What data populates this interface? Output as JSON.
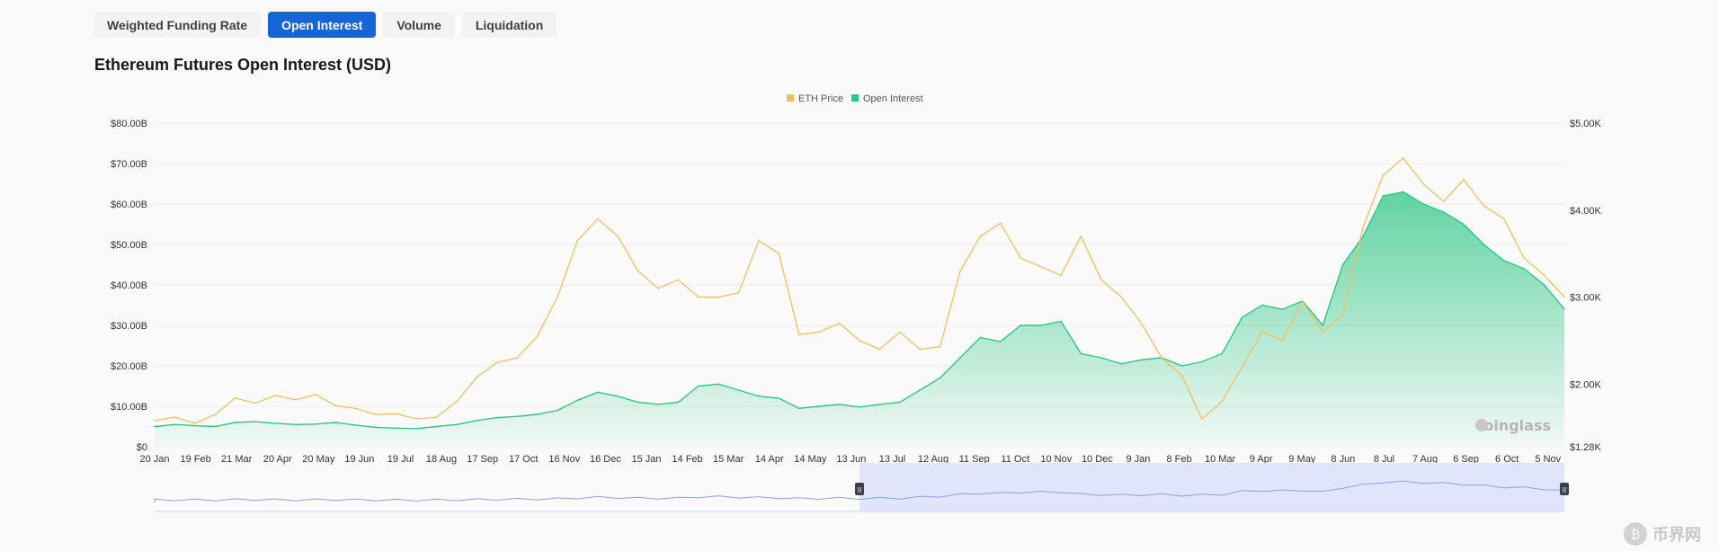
{
  "tabs": [
    {
      "label": "Weighted Funding Rate",
      "active": false
    },
    {
      "label": "Open Interest",
      "active": true
    },
    {
      "label": "Volume",
      "active": false
    },
    {
      "label": "Liquidation",
      "active": false
    }
  ],
  "chart_title": "Ethereum Futures Open Interest (USD)",
  "watermark": {
    "chart": "coinglass",
    "site": "币界网",
    "site_icon": "bitcoin-icon"
  },
  "colors": {
    "eth_price": "#f0c060",
    "open_interest": "#2ec785",
    "active_tab": "#1565d8",
    "navigator_fill": "#dfe5fb"
  },
  "chart_data": {
    "type": "line",
    "title": "Ethereum Futures Open Interest (USD)",
    "legend": {
      "position": "top-center",
      "entries": [
        "ETH Price",
        "Open Interest"
      ]
    },
    "grid": true,
    "x_labels": [
      "20 Jan",
      "19 Feb",
      "21 Mar",
      "20 Apr",
      "20 May",
      "19 Jun",
      "19 Jul",
      "18 Aug",
      "17 Sep",
      "17 Oct",
      "16 Nov",
      "16 Dec",
      "15 Jan",
      "14 Feb",
      "15 Mar",
      "14 Apr",
      "14 May",
      "13 Jun",
      "13 Jul",
      "12 Aug",
      "11 Sep",
      "11 Oct",
      "10 Nov",
      "10 Dec",
      "9 Jan",
      "8 Feb",
      "10 Mar",
      "9 Apr",
      "9 May",
      "8 Jun",
      "8 Jul",
      "7 Aug",
      "6 Sep",
      "6 Oct",
      "5 Nov"
    ],
    "y_left": {
      "ticks": [
        "$0",
        "$10.00B",
        "$20.00B",
        "$30.00B",
        "$40.00B",
        "$50.00B",
        "$60.00B",
        "$70.00B",
        "$80.00B"
      ],
      "range": [
        0,
        80
      ],
      "unit": "B USD"
    },
    "y_right": {
      "ticks": [
        "$1.28K",
        "$2.00K",
        "$3.00K",
        "$4.00K",
        "$5.00K"
      ],
      "values": [
        1280,
        2000,
        3000,
        4000,
        5000
      ],
      "range": [
        1280,
        5000
      ],
      "unit": "USD"
    },
    "series": [
      {
        "name": "ETH Price",
        "axis": "right",
        "values": [
          1580,
          1620,
          1550,
          1650,
          1840,
          1780,
          1870,
          1820,
          1880,
          1750,
          1720,
          1650,
          1660,
          1600,
          1620,
          1800,
          2080,
          2250,
          2300,
          2550,
          3000,
          3650,
          3900,
          3700,
          3300,
          3100,
          3200,
          3000,
          3000,
          3050,
          3650,
          3500,
          2570,
          2600,
          2700,
          2500,
          2400,
          2600,
          2400,
          2430,
          3300,
          3700,
          3850,
          3450,
          3350,
          3250,
          3700,
          3200,
          3000,
          2700,
          2300,
          2100,
          1600,
          1800,
          2200,
          2600,
          2500,
          2950,
          2600,
          2800,
          3800,
          4400,
          4600,
          4300,
          4100,
          4350,
          4050,
          3900,
          3450,
          3250,
          3000
        ]
      },
      {
        "name": "Open Interest",
        "axis": "left",
        "values": [
          5.0,
          5.5,
          5.2,
          5.0,
          6.0,
          6.2,
          5.8,
          5.5,
          5.6,
          6.0,
          5.3,
          4.8,
          4.6,
          4.5,
          5.0,
          5.5,
          6.5,
          7.2,
          7.5,
          8.0,
          9.0,
          11.5,
          13.5,
          12.5,
          11.0,
          10.5,
          11.0,
          15.0,
          15.5,
          14.0,
          12.5,
          12.0,
          9.5,
          10.0,
          10.5,
          9.8,
          10.5,
          11.0,
          14.0,
          17.0,
          22.0,
          27.0,
          26.0,
          30.0,
          30.0,
          31.0,
          23.0,
          22.0,
          20.5,
          21.5,
          22.0,
          20.0,
          21.0,
          23.0,
          32.0,
          35.0,
          34.0,
          36.0,
          30.0,
          45.0,
          52.0,
          62.0,
          63.0,
          60.0,
          58.0,
          55.0,
          50.0,
          46.0,
          44.0,
          40.0,
          34.0
        ]
      }
    ],
    "x_index_positions": "71 samples evenly spaced from 20 Jan to 5 Nov (+~2 weeks)"
  },
  "navigator": {
    "left_handle": "II",
    "right_handle": "II"
  }
}
